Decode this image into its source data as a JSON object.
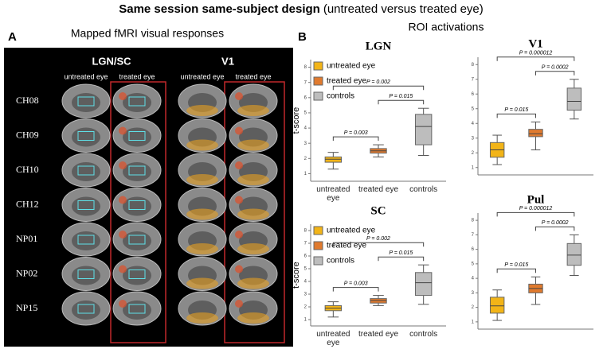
{
  "header": {
    "title_bold": "Same session same-subject design",
    "title_rest": "(untreated versus treated eye)"
  },
  "panel_a": {
    "letter": "A",
    "title": "Mapped fMRI visual responses",
    "columns": [
      {
        "name": "LGN/SC",
        "sub": [
          "untreated eye",
          "treated eye"
        ]
      },
      {
        "name": "V1",
        "sub": [
          "untreated eye",
          "treated eye"
        ]
      }
    ],
    "rows": [
      "CH08",
      "CH09",
      "CH10",
      "CH12",
      "NP01",
      "NP02",
      "NP15"
    ]
  },
  "panel_b": {
    "letter": "B",
    "title": "ROI activations"
  },
  "chart_data": [
    {
      "type": "box",
      "title": "LGN",
      "ylabel": "t-score",
      "categories": [
        "untreated eye",
        "treated eye",
        "controls"
      ],
      "series": [
        {
          "name": "untreated eye",
          "color": "#f2b418",
          "values": [
            1.3,
            1.75,
            1.95,
            2.1,
            2.4
          ]
        },
        {
          "name": "treated eye",
          "color": "#e07a2e",
          "values": [
            2.1,
            2.35,
            2.5,
            2.65,
            2.9
          ]
        },
        {
          "name": "controls",
          "color": "#bdbdbd",
          "values": [
            2.2,
            2.9,
            4.1,
            4.9,
            5.3
          ]
        }
      ],
      "ylim": [
        0.5,
        8.5
      ],
      "yticks": [
        1,
        2,
        3,
        4,
        5,
        6,
        7,
        8
      ],
      "comparisons": [
        {
          "label": "P = 0.003",
          "groups": [
            "untreated eye",
            "treated eye"
          ]
        },
        {
          "label": "P = 0.015",
          "groups": [
            "treated eye",
            "controls"
          ]
        },
        {
          "label": "P = 0.002",
          "groups": [
            "untreated eye",
            "controls"
          ]
        }
      ]
    },
    {
      "type": "box",
      "title": "V1",
      "categories": [
        null,
        null,
        null
      ],
      "series": [
        {
          "color": "#f2b418",
          "values": [
            1.2,
            1.7,
            2.2,
            2.7,
            3.2
          ]
        },
        {
          "color": "#e07a2e",
          "values": [
            2.2,
            3.1,
            3.3,
            3.6,
            4.1
          ]
        },
        {
          "color": "#bdbdbd",
          "values": [
            4.3,
            4.9,
            5.5,
            6.4,
            7.0
          ]
        }
      ],
      "ylim": [
        0.5,
        8.5
      ],
      "yticks": [
        1,
        2,
        3,
        4,
        5,
        6,
        7,
        8
      ],
      "comparisons": [
        {
          "label": "P = 0.015",
          "groups": [
            0,
            1
          ]
        },
        {
          "label": "P = 0.0002",
          "groups": [
            1,
            2
          ]
        },
        {
          "label": "P = 0.000012",
          "groups": [
            0,
            2
          ]
        }
      ]
    },
    {
      "type": "box",
      "title": "SC",
      "ylabel": "t-score",
      "categories": [
        "untreated eye",
        "treated eye",
        "controls"
      ],
      "series": [
        {
          "name": "untreated eye",
          "color": "#f2b418",
          "values": [
            1.2,
            1.7,
            1.9,
            2.1,
            2.4
          ]
        },
        {
          "name": "treated eye",
          "color": "#e07a2e",
          "values": [
            2.1,
            2.3,
            2.5,
            2.65,
            2.9
          ]
        },
        {
          "name": "controls",
          "color": "#bdbdbd",
          "values": [
            2.2,
            2.9,
            3.9,
            4.7,
            5.3
          ]
        }
      ],
      "ylim": [
        0.5,
        8.5
      ],
      "yticks": [
        1,
        2,
        3,
        4,
        5,
        6,
        7,
        8
      ],
      "comparisons": [
        {
          "label": "P = 0.003",
          "groups": [
            "untreated eye",
            "treated eye"
          ]
        },
        {
          "label": "P = 0.015",
          "groups": [
            "treated eye",
            "controls"
          ]
        },
        {
          "label": "P = 0.002",
          "groups": [
            "untreated eye",
            "controls"
          ]
        }
      ]
    },
    {
      "type": "box",
      "title": "Pul",
      "categories": [
        null,
        null,
        null
      ],
      "series": [
        {
          "color": "#f2b418",
          "values": [
            1.1,
            1.6,
            2.1,
            2.7,
            3.2
          ]
        },
        {
          "color": "#e07a2e",
          "values": [
            2.2,
            3.0,
            3.3,
            3.6,
            4.1
          ]
        },
        {
          "color": "#bdbdbd",
          "values": [
            4.2,
            4.9,
            5.6,
            6.4,
            7.0
          ]
        }
      ],
      "ylim": [
        0.5,
        8.5
      ],
      "yticks": [
        1,
        2,
        3,
        4,
        5,
        6,
        7,
        8
      ],
      "comparisons": [
        {
          "label": "P = 0.015",
          "groups": [
            0,
            1
          ]
        },
        {
          "label": "P = 0.0002",
          "groups": [
            1,
            2
          ]
        },
        {
          "label": "P = 0.000012",
          "groups": [
            0,
            2
          ]
        }
      ]
    }
  ]
}
